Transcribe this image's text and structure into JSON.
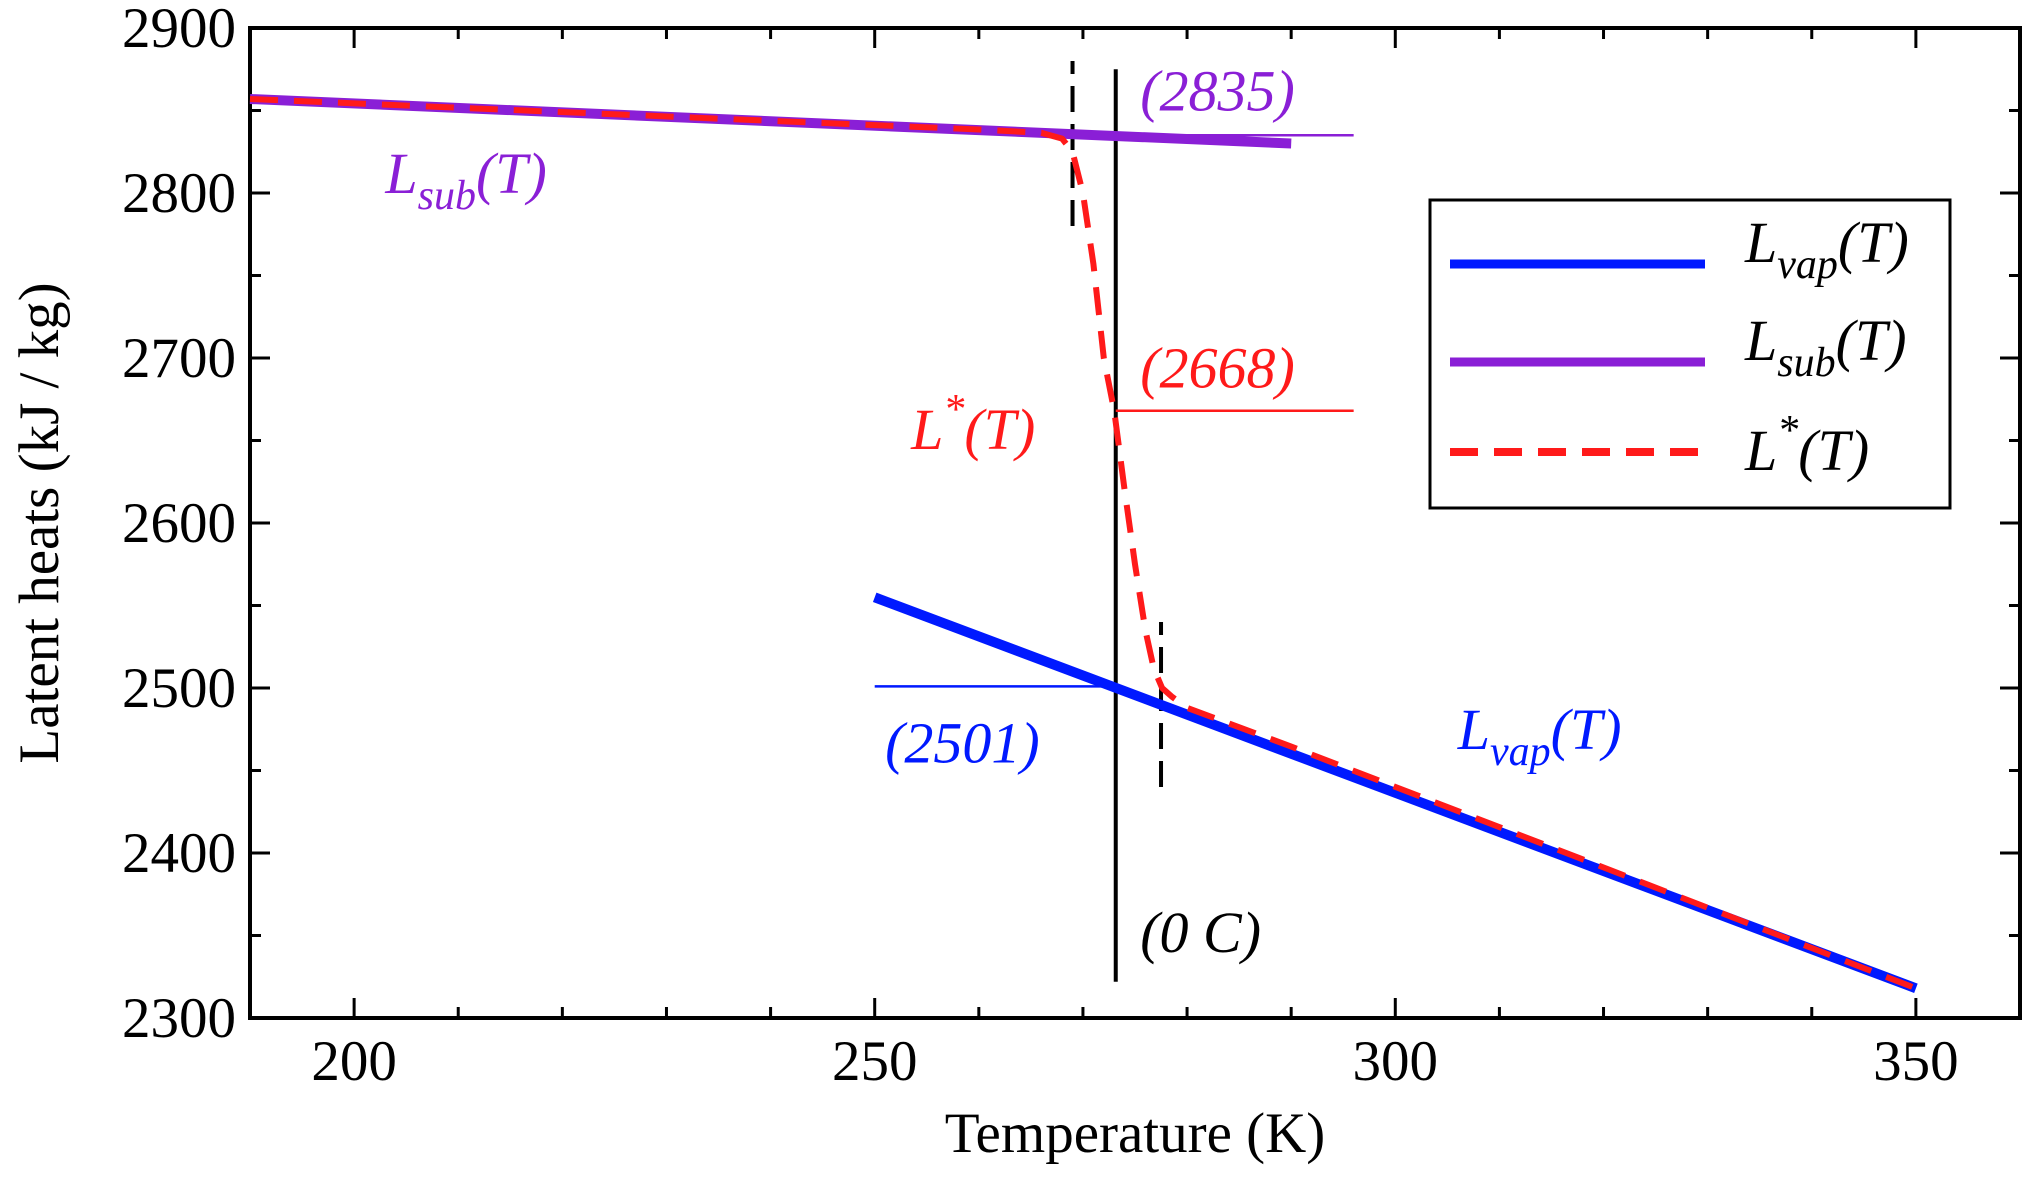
{
  "chart_data": {
    "type": "line",
    "xlabel": "Temperature (K)",
    "ylabel": "Latent heats (kJ / kg)",
    "xlim": [
      190,
      360
    ],
    "ylim": [
      2300,
      2900
    ],
    "xticks": [
      200,
      250,
      300,
      350
    ],
    "yticks": [
      2300,
      2400,
      2500,
      2600,
      2700,
      2800,
      2900
    ],
    "grid": false,
    "legend_position": "right",
    "colors": {
      "vap": "#0019ff",
      "sub": "#8a1fd6",
      "star": "#ff1a1a",
      "axes": "#000000"
    },
    "series": [
      {
        "key": "vap",
        "label_main": "L",
        "label_sub": "vap",
        "label_rest": "(T)",
        "x": [
          250,
          350
        ],
        "y": [
          2555,
          2318
        ]
      },
      {
        "key": "sub",
        "label_main": "L",
        "label_sub": "sub",
        "label_rest": "(T)",
        "x": [
          190,
          290
        ],
        "y": [
          2857,
          2830
        ]
      },
      {
        "key": "star",
        "label_main": "L",
        "label_sup": "*",
        "label_rest": "(T)",
        "x": [
          190,
          260,
          266,
          268,
          269,
          270,
          271,
          272,
          273,
          274,
          275,
          276,
          276.8,
          277.6,
          278.5,
          280,
          290,
          350
        ],
        "y": [
          2857,
          2838.5,
          2836.5,
          2833,
          2825,
          2800,
          2757,
          2700,
          2668,
          2620,
          2575,
          2535,
          2512,
          2500,
          2495,
          2488,
          2464.5,
          2318
        ]
      }
    ],
    "reference_lines": [
      {
        "key": "zero_c",
        "x": 273.15,
        "y0": 2322,
        "y1": 2875
      },
      {
        "key": "dashed_left",
        "x": 269,
        "y0": 2780,
        "y1": 2880
      },
      {
        "key": "dashed_right",
        "x": 277.5,
        "y0": 2440,
        "y1": 2540
      },
      {
        "key": "h2835",
        "y": 2835,
        "x0": 272,
        "x1": 296
      },
      {
        "key": "h2668",
        "y": 2668,
        "x0": 273.15,
        "x1": 296
      },
      {
        "key": "h2501",
        "y": 2501,
        "x0": 250,
        "x1": 273.15
      }
    ],
    "annotations": {
      "v2835": "(2835)",
      "v2668": "(2668)",
      "v2501": "(2501)",
      "zero_c": "(0 C)",
      "lsub_main": "L",
      "lsub_sub": "sub",
      "lsub_rest": "(T)",
      "lvap_main": "L",
      "lvap_sub": "vap",
      "lvap_rest": "(T)",
      "lstar_main": "L",
      "lstar_sup": "*",
      "lstar_rest": "(T)"
    }
  }
}
